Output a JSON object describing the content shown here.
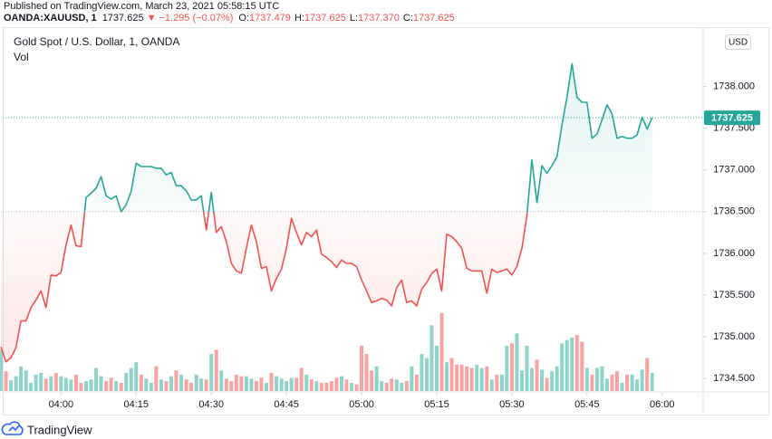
{
  "header": {
    "published": "Published on TradingView.com, March 23, 2021 05:58:15 UTC",
    "symbol": "OANDA:XAUUSD, 1",
    "last": "1737.625",
    "change": "−1.295 (−0.07%)",
    "ohlc": [
      {
        "label": "O:",
        "value": "1737.479"
      },
      {
        "label": "H:",
        "value": "1737.625"
      },
      {
        "label": "L:",
        "value": "1737.370"
      },
      {
        "label": "C:",
        "value": "1737.625"
      }
    ]
  },
  "chart_data": {
    "type": "line",
    "title": "Gold Spot / U.S. Dollar, 1, OANDA",
    "volume_label": "Vol",
    "currency": "USD",
    "x": [
      "03:48",
      "03:49",
      "03:50",
      "03:51",
      "03:52",
      "03:53",
      "03:54",
      "03:55",
      "03:56",
      "03:57",
      "03:58",
      "03:59",
      "04:00",
      "04:01",
      "04:02",
      "04:03",
      "04:04",
      "04:05",
      "04:06",
      "04:07",
      "04:08",
      "04:09",
      "04:10",
      "04:11",
      "04:12",
      "04:13",
      "04:14",
      "04:15",
      "04:16",
      "04:17",
      "04:18",
      "04:19",
      "04:20",
      "04:21",
      "04:22",
      "04:23",
      "04:24",
      "04:25",
      "04:26",
      "04:27",
      "04:28",
      "04:29",
      "04:30",
      "04:31",
      "04:32",
      "04:33",
      "04:34",
      "04:35",
      "04:36",
      "04:37",
      "04:38",
      "04:39",
      "04:40",
      "04:41",
      "04:42",
      "04:43",
      "04:44",
      "04:45",
      "04:46",
      "04:47",
      "04:48",
      "04:49",
      "04:50",
      "04:51",
      "04:52",
      "04:53",
      "04:54",
      "04:55",
      "04:56",
      "04:57",
      "04:58",
      "04:59",
      "05:00",
      "05:01",
      "05:02",
      "05:03",
      "05:04",
      "05:05",
      "05:06",
      "05:07",
      "05:08",
      "05:09",
      "05:10",
      "05:11",
      "05:12",
      "05:13",
      "05:14",
      "05:15",
      "05:16",
      "05:17",
      "05:18",
      "05:19",
      "05:20",
      "05:21",
      "05:22",
      "05:23",
      "05:24",
      "05:25",
      "05:26",
      "05:27",
      "05:28",
      "05:29",
      "05:30",
      "05:31",
      "05:32",
      "05:33",
      "05:34",
      "05:35",
      "05:36",
      "05:37",
      "05:38",
      "05:39",
      "05:40",
      "05:41",
      "05:42",
      "05:43",
      "05:44",
      "05:45",
      "05:46",
      "05:47",
      "05:48",
      "05:49",
      "05:50",
      "05:51",
      "05:52",
      "05:53",
      "05:54",
      "05:55",
      "05:56",
      "05:57",
      "05:58"
    ],
    "series": [
      {
        "name": "XAUUSD",
        "values": [
          1734.88,
          1734.7,
          1734.75,
          1734.87,
          1735.19,
          1735.19,
          1735.35,
          1735.44,
          1735.55,
          1735.35,
          1735.74,
          1735.73,
          1735.77,
          1736.1,
          1736.34,
          1736.09,
          1736.08,
          1736.67,
          1736.72,
          1736.78,
          1736.92,
          1736.69,
          1736.65,
          1736.69,
          1736.5,
          1736.58,
          1736.74,
          1737.08,
          1737.04,
          1737.04,
          1737.04,
          1737.02,
          1737.02,
          1736.94,
          1736.97,
          1736.81,
          1736.81,
          1736.75,
          1736.64,
          1736.64,
          1736.69,
          1736.28,
          1736.73,
          1736.25,
          1736.32,
          1736.14,
          1735.88,
          1735.79,
          1735.76,
          1736.06,
          1736.34,
          1736.14,
          1735.82,
          1735.84,
          1735.55,
          1735.7,
          1735.81,
          1736.06,
          1736.42,
          1736.25,
          1736.1,
          1736.25,
          1736.2,
          1736.28,
          1735.99,
          1735.95,
          1735.9,
          1735.83,
          1735.92,
          1735.88,
          1735.88,
          1735.84,
          1735.68,
          1735.55,
          1735.41,
          1735.43,
          1735.46,
          1735.44,
          1735.37,
          1735.59,
          1735.68,
          1735.41,
          1735.43,
          1735.37,
          1735.57,
          1735.65,
          1735.76,
          1735.81,
          1735.55,
          1736.23,
          1736.2,
          1736.14,
          1736.06,
          1735.82,
          1735.79,
          1735.79,
          1735.79,
          1735.52,
          1735.81,
          1735.77,
          1735.79,
          1735.81,
          1735.74,
          1735.84,
          1736.06,
          1736.45,
          1737.12,
          1736.61,
          1737.05,
          1736.96,
          1737.05,
          1737.16,
          1737.54,
          1737.87,
          1738.27,
          1737.87,
          1737.81,
          1737.81,
          1737.38,
          1737.43,
          1737.6,
          1737.78,
          1737.67,
          1737.38,
          1737.4,
          1737.38,
          1737.38,
          1737.42,
          1737.63,
          1737.49,
          1737.625
        ]
      }
    ],
    "volume": [
      50,
      24,
      13,
      18,
      30,
      25,
      10,
      20,
      22,
      15,
      18,
      22,
      18,
      16,
      14,
      20,
      10,
      12,
      14,
      28,
      18,
      12,
      16,
      12,
      10,
      22,
      28,
      35,
      20,
      15,
      10,
      30,
      14,
      12,
      18,
      25,
      20,
      14,
      10,
      20,
      15,
      14,
      45,
      50,
      25,
      15,
      12,
      20,
      18,
      18,
      15,
      12,
      16,
      10,
      22,
      18,
      15,
      12,
      16,
      16,
      28,
      20,
      14,
      12,
      10,
      10,
      12,
      16,
      18,
      14,
      10,
      8,
      55,
      45,
      25,
      30,
      12,
      10,
      15,
      14,
      10,
      12,
      30,
      20,
      45,
      40,
      80,
      55,
      95,
      35,
      40,
      32,
      32,
      30,
      28,
      32,
      28,
      30,
      14,
      20,
      20,
      55,
      58,
      70,
      25,
      55,
      28,
      38,
      26,
      16,
      24,
      30,
      58,
      62,
      65,
      68,
      60,
      28,
      20,
      28,
      30,
      15,
      20,
      24,
      10,
      20,
      20,
      14,
      26,
      40,
      22
    ],
    "vlim": [
      0,
      110
    ],
    "baseline": 1736.5,
    "up_color": "#26a69a",
    "down_color": "#ef5350",
    "volume_up_color": "#8fd3cb",
    "volume_down_color": "#f6a3a1",
    "xlim": [
      "03:48",
      "06:08"
    ],
    "xticks": [
      "04:00",
      "04:15",
      "04:30",
      "04:45",
      "05:00",
      "05:15",
      "05:30",
      "05:45",
      "06:00"
    ],
    "ylim": [
      1734.35,
      1738.7
    ],
    "yticks": [
      {
        "value": 1734.5,
        "label": "1734.500"
      },
      {
        "value": 1735,
        "label": "1735.000"
      },
      {
        "value": 1735.5,
        "label": "1735.500"
      },
      {
        "value": 1736,
        "label": "1736.000"
      },
      {
        "value": 1736.5,
        "label": "1736.500"
      },
      {
        "value": 1737,
        "label": "1737.000"
      },
      {
        "value": 1737.5,
        "label": "1737.500"
      },
      {
        "value": 1738,
        "label": "1738.000"
      }
    ],
    "grid": false
  },
  "footer": {
    "brand": "TradingView"
  }
}
